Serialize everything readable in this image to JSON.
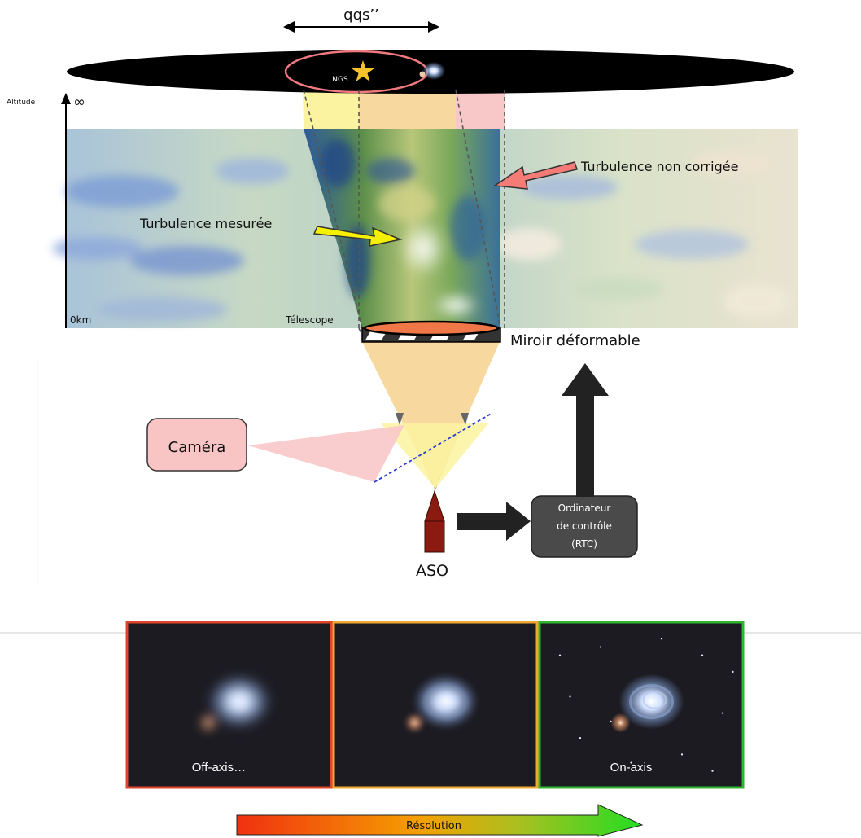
{
  "labels": {
    "angle": "qqs’’",
    "ngs": "NGS",
    "altitude": "Altitude",
    "infinity": "∞",
    "zero_km": "0km",
    "telescope": "Télescope",
    "measured": "Turbulence mesurée",
    "uncorrected": "Turbulence non corrigée",
    "mirror": "Miroir déformable",
    "camera": "Caméra",
    "aso": "ASO",
    "rtc_line1": "Ordinateur",
    "rtc_line2": "de contrôle",
    "rtc_line3": "(RTC)"
  },
  "panels": [
    {
      "caption": "Off-axis…",
      "border": "#e0452a",
      "sharpness": 0.25
    },
    {
      "caption": "",
      "border": "#f0a830",
      "sharpness": 0.55
    },
    {
      "caption": "On-axis",
      "border": "#2fb52f",
      "sharpness": 1.0
    }
  ],
  "resolution_label": "Résolution",
  "colors": {
    "yellow_beam": "#fbf3a0",
    "orange_beam": "#f7d9a0",
    "pink_beam": "#f8c8c8",
    "camera_box": "#f9c4c4",
    "rtc_box": "#4a4a4a",
    "aso": "#8b1a10"
  }
}
